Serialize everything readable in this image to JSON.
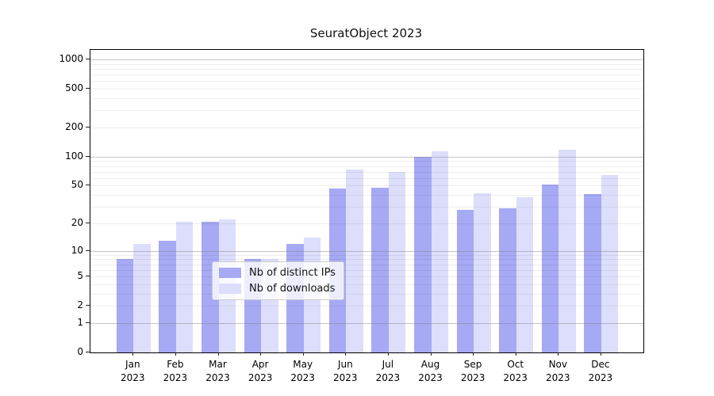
{
  "figure": {
    "title": "SeuratObject 2023"
  },
  "colors": {
    "ips_bar": "#a6a9f3",
    "downloads_bar": "#dcdefb",
    "grid_decade": "#c9c9c9",
    "grid_minor": "#ececec",
    "spine": "#000000",
    "legend_border": "#cccccc"
  },
  "legend": {
    "items": [
      {
        "label": "Nb of distinct IPs"
      },
      {
        "label": "Nb of downloads"
      }
    ]
  },
  "chart_data": {
    "type": "bar",
    "title": "SeuratObject 2023",
    "categories": [
      "Jan",
      "Feb",
      "Mar",
      "Apr",
      "May",
      "Jun",
      "Jul",
      "Aug",
      "Sep",
      "Oct",
      "Nov",
      "Dec"
    ],
    "year_label": "2023",
    "series": [
      {
        "key": "ips",
        "name": "Nb of distinct IPs",
        "color": "#a6a9f3",
        "values": [
          8,
          13,
          21,
          8,
          12,
          47,
          48,
          100,
          28,
          29,
          51,
          41
        ]
      },
      {
        "key": "downloads",
        "name": "Nb of downloads",
        "color": "#dcdefb",
        "values": [
          12,
          21,
          22,
          8,
          14,
          74,
          70,
          113,
          42,
          38,
          118,
          65
        ]
      }
    ],
    "yscale": "log1p",
    "yticks": [
      0,
      1,
      2,
      5,
      10,
      20,
      50,
      100,
      200,
      500,
      1000
    ],
    "ylim": [
      0,
      1250
    ],
    "grid": true,
    "legend_position": "lower center"
  }
}
